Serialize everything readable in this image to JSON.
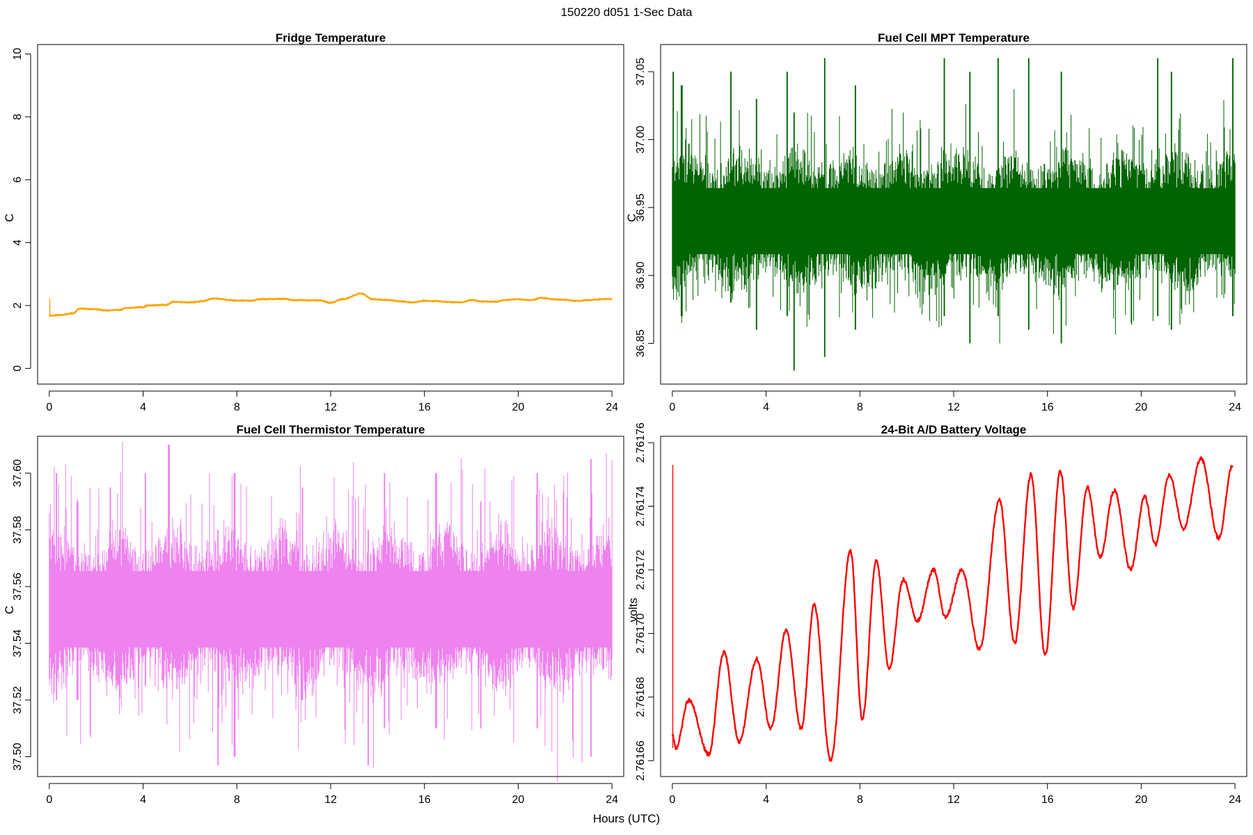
{
  "figure": {
    "title": "150220   d051   1-Sec Data",
    "xlabel": "Hours (UTC)"
  },
  "chart_data": [
    {
      "type": "line",
      "title": "Fridge Temperature",
      "ylabel": "C",
      "xlabel": "",
      "color": "#FFA500",
      "xlim": [
        -0.5,
        24.5
      ],
      "ylim": [
        -0.5,
        10.3
      ],
      "xticks": [
        0,
        4,
        8,
        12,
        16,
        20,
        24
      ],
      "xtick_labels": [
        "0",
        "4",
        "8",
        "12",
        "16",
        "20",
        "24"
      ],
      "yticks": [
        0,
        2,
        4,
        6,
        8,
        10
      ],
      "ytick_labels": [
        "0",
        "2",
        "4",
        "6",
        "8",
        "10"
      ],
      "grid": false,
      "noise": 0.015,
      "spike": {
        "x": 0.02,
        "y0": 1.7,
        "y1": 2.22
      },
      "x": [
        0,
        0.5,
        1,
        1.3,
        2,
        2.4,
        3,
        3.3,
        4,
        4.2,
        5,
        5.3,
        6,
        6.5,
        7,
        8,
        8.6,
        9,
        10,
        10.5,
        11.5,
        12,
        12.5,
        13.3,
        13.8,
        14.5,
        15,
        15.5,
        16,
        16.5,
        17,
        17.5,
        18,
        18.5,
        19,
        19.5,
        20,
        20.5,
        21,
        21.5,
        22,
        22.5,
        23,
        23.5,
        24
      ],
      "y": [
        1.68,
        1.7,
        1.75,
        1.9,
        1.88,
        1.84,
        1.86,
        1.92,
        1.95,
        2.0,
        2.02,
        2.12,
        2.1,
        2.13,
        2.22,
        2.16,
        2.15,
        2.2,
        2.21,
        2.17,
        2.16,
        2.09,
        2.2,
        2.38,
        2.2,
        2.17,
        2.13,
        2.1,
        2.15,
        2.14,
        2.11,
        2.1,
        2.17,
        2.13,
        2.12,
        2.18,
        2.2,
        2.17,
        2.24,
        2.2,
        2.18,
        2.15,
        2.17,
        2.2,
        2.21
      ]
    },
    {
      "type": "line",
      "title": "Fuel Cell MPT Temperature",
      "ylabel": "C",
      "xlabel": "",
      "color": "#006400",
      "xlim": [
        -0.5,
        24.5
      ],
      "ylim": [
        36.82,
        37.07
      ],
      "xticks": [
        0,
        4,
        8,
        12,
        16,
        20,
        24
      ],
      "xtick_labels": [
        "0",
        "4",
        "8",
        "12",
        "16",
        "20",
        "24"
      ],
      "yticks": [
        36.85,
        36.9,
        36.95,
        37.0,
        37.05
      ],
      "ytick_labels": [
        "36.85",
        "36.90",
        "36.95",
        "37.00",
        "37.05"
      ],
      "grid": false,
      "band": {
        "center": 36.94,
        "spread": 0.027,
        "peak_spread": 0.06
      },
      "peaks": [
        {
          "x": 0.05,
          "hi": 37.05,
          "lo": 36.89
        },
        {
          "x": 0.4,
          "hi": 37.04,
          "lo": 36.87
        },
        {
          "x": 2.5,
          "hi": 37.05,
          "lo": 36.88
        },
        {
          "x": 3.6,
          "hi": 37.03,
          "lo": 36.86
        },
        {
          "x": 4.9,
          "hi": 37.05,
          "lo": 36.87
        },
        {
          "x": 5.2,
          "hi": 37.02,
          "lo": 36.83
        },
        {
          "x": 6.5,
          "hi": 37.06,
          "lo": 36.84
        },
        {
          "x": 7.8,
          "hi": 37.04,
          "lo": 36.86
        },
        {
          "x": 11.6,
          "hi": 37.06,
          "lo": 36.87
        },
        {
          "x": 12.7,
          "hi": 37.05,
          "lo": 36.85
        },
        {
          "x": 13.9,
          "hi": 37.06,
          "lo": 36.87
        },
        {
          "x": 15.2,
          "hi": 37.06,
          "lo": 36.86
        },
        {
          "x": 16.6,
          "hi": 37.05,
          "lo": 36.85
        },
        {
          "x": 20.7,
          "hi": 37.06,
          "lo": 36.87
        },
        {
          "x": 21.3,
          "hi": 37.05,
          "lo": 36.86
        },
        {
          "x": 23.9,
          "hi": 37.06,
          "lo": 36.87
        }
      ]
    },
    {
      "type": "line",
      "title": "Fuel Cell Thermistor Temperature",
      "ylabel": "C",
      "xlabel": "",
      "color": "#EE82EE",
      "xlim": [
        -0.5,
        24.5
      ],
      "ylim": [
        37.493,
        37.613
      ],
      "xticks": [
        0,
        4,
        8,
        12,
        16,
        20,
        24
      ],
      "xtick_labels": [
        "0",
        "4",
        "8",
        "12",
        "16",
        "20",
        "24"
      ],
      "yticks": [
        37.5,
        37.52,
        37.54,
        37.56,
        37.58,
        37.6
      ],
      "ytick_labels": [
        "37.50",
        "37.52",
        "37.54",
        "37.56",
        "37.58",
        "37.60"
      ],
      "grid": false,
      "band": {
        "center": 37.552,
        "spread": 0.015,
        "peak_spread": 0.045
      },
      "peaks": [
        {
          "x": 0.3,
          "hi": 37.6,
          "lo": 37.52
        },
        {
          "x": 1.2,
          "hi": 37.59,
          "lo": 37.52
        },
        {
          "x": 2.6,
          "hi": 37.595,
          "lo": 37.53
        },
        {
          "x": 4.1,
          "hi": 37.6,
          "lo": 37.525
        },
        {
          "x": 5.1,
          "hi": 37.61,
          "lo": 37.53
        },
        {
          "x": 7.2,
          "hi": 37.58,
          "lo": 37.497
        },
        {
          "x": 7.9,
          "hi": 37.6,
          "lo": 37.5
        },
        {
          "x": 10.8,
          "hi": 37.595,
          "lo": 37.52
        },
        {
          "x": 13.6,
          "hi": 37.58,
          "lo": 37.497
        },
        {
          "x": 14.3,
          "hi": 37.6,
          "lo": 37.51
        },
        {
          "x": 16.5,
          "hi": 37.6,
          "lo": 37.51
        },
        {
          "x": 18.4,
          "hi": 37.59,
          "lo": 37.51
        },
        {
          "x": 20.8,
          "hi": 37.6,
          "lo": 37.51
        },
        {
          "x": 23.1,
          "hi": 37.605,
          "lo": 37.5
        }
      ]
    },
    {
      "type": "line",
      "title": "24-Bit A/D Battery Voltage",
      "ylabel": "volts",
      "xlabel": "",
      "color": "#FF0000",
      "xlim": [
        -0.5,
        24.5
      ],
      "ylim": [
        2.761655,
        2.761762
      ],
      "xticks": [
        0,
        4,
        8,
        12,
        16,
        20,
        24
      ],
      "xtick_labels": [
        "0",
        "4",
        "8",
        "12",
        "16",
        "20",
        "24"
      ],
      "yticks": [
        2.76166,
        2.76168,
        2.7617,
        2.76172,
        2.76174,
        2.76176
      ],
      "ytick_labels": [
        "2.76166",
        "2.76168",
        "2.76170",
        "2.76172",
        "2.76174",
        "2.76176"
      ],
      "grid": false,
      "noise": 6e-07,
      "spike": {
        "x": 0.02,
        "y0": 2.761664,
        "y1": 2.761753
      },
      "x": [
        0,
        0.15,
        0.7,
        1.55,
        2.2,
        2.85,
        3.6,
        4.2,
        4.85,
        5.5,
        6.05,
        6.75,
        7.6,
        8.1,
        8.7,
        9.25,
        9.85,
        10.45,
        11.15,
        11.65,
        12.35,
        13.1,
        13.95,
        14.6,
        15.3,
        15.9,
        16.55,
        17.1,
        17.7,
        18.25,
        18.85,
        19.55,
        20.15,
        20.6,
        21.2,
        21.8,
        22.55,
        23.3,
        23.9
      ],
      "y": [
        2.761668,
        2.761664,
        2.761679,
        2.761662,
        2.761694,
        2.761666,
        2.761692,
        2.76167,
        2.761701,
        2.76167,
        2.761709,
        2.76166,
        2.761726,
        2.761673,
        2.761723,
        2.761689,
        2.761717,
        2.761704,
        2.76172,
        2.761705,
        2.76172,
        2.761695,
        2.761742,
        2.761697,
        2.76175,
        2.761693,
        2.761751,
        2.761708,
        2.761746,
        2.761724,
        2.761745,
        2.76172,
        2.761743,
        2.761728,
        2.76175,
        2.761733,
        2.761755,
        2.76173,
        2.761753
      ]
    }
  ]
}
